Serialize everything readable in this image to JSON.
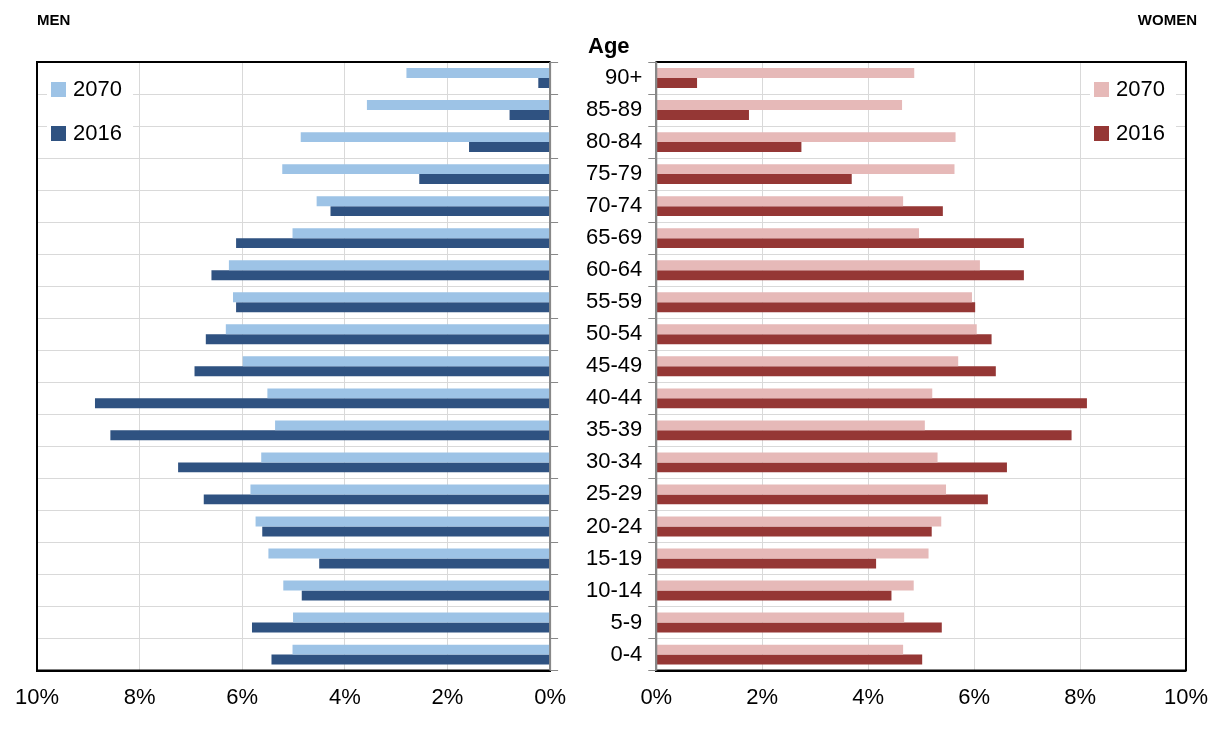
{
  "chart_data": [
    {
      "type": "bar",
      "orientation": "horizontal",
      "title": "MEN",
      "categories": [
        null,
        null,
        null,
        null,
        null,
        null,
        null,
        null,
        null,
        null,
        null,
        null,
        null,
        null,
        null,
        null,
        null,
        null,
        null
      ],
      "series": [
        {
          "name": "2070",
          "color": "#9dc3e6",
          "values": [
            2.8,
            3.57,
            4.86,
            5.22,
            4.55,
            5.02,
            6.26,
            6.18,
            6.32,
            5.99,
            5.51,
            5.36,
            5.63,
            5.84,
            5.74,
            5.49,
            5.2,
            5.01,
            5.02
          ]
        },
        {
          "name": "2016",
          "color": "#2f5281",
          "values": [
            0.23,
            0.79,
            1.58,
            2.55,
            4.28,
            6.12,
            6.6,
            6.12,
            6.71,
            6.93,
            8.87,
            8.57,
            7.25,
            6.75,
            5.61,
            4.5,
            4.84,
            5.81,
            5.43
          ]
        }
      ],
      "xlim": [
        10,
        0
      ],
      "xticks": [
        {
          "value": 10,
          "label": "10%"
        },
        {
          "value": 8,
          "label": "8%"
        },
        {
          "value": 6,
          "label": "6%"
        },
        {
          "value": 4,
          "label": "4%"
        },
        {
          "value": 2,
          "label": "2%"
        },
        {
          "value": 0,
          "label": "0%"
        }
      ],
      "grid": true,
      "legend": "top left",
      "tick_labels": "x"
    },
    {
      "type": "bar",
      "orientation": "horizontal",
      "title": "WOMEN",
      "ylabel": "Age",
      "categories": [
        "90+",
        "85-89",
        "80-84",
        "75-79",
        "70-74",
        "65-69",
        "60-64",
        "55-59",
        "50-54",
        "45-49",
        "40-44",
        "35-39",
        "30-34",
        "25-29",
        "20-24",
        "15-19",
        "10-14",
        "5-9",
        "0-4"
      ],
      "series": [
        {
          "name": "2070",
          "color": "#e6b9b8",
          "values": [
            4.87,
            4.64,
            5.65,
            5.63,
            4.66,
            4.96,
            6.11,
            5.96,
            6.05,
            5.7,
            5.21,
            5.07,
            5.31,
            5.47,
            5.38,
            5.14,
            4.86,
            4.68,
            4.66
          ]
        },
        {
          "name": "2016",
          "color": "#953735",
          "values": [
            0.77,
            1.75,
            2.74,
            3.69,
            5.41,
            6.94,
            6.94,
            6.02,
            6.33,
            6.41,
            8.13,
            7.84,
            6.62,
            6.26,
            5.2,
            4.15,
            4.44,
            5.39,
            5.02
          ]
        }
      ],
      "xlim": [
        0,
        10
      ],
      "xticks": [
        {
          "value": 0,
          "label": "0%"
        },
        {
          "value": 2,
          "label": "2%"
        },
        {
          "value": 4,
          "label": "4%"
        },
        {
          "value": 6,
          "label": "6%"
        },
        {
          "value": 8,
          "label": "8%"
        },
        {
          "value": 10,
          "label": "10%"
        }
      ],
      "grid": true,
      "legend": "top right"
    }
  ]
}
